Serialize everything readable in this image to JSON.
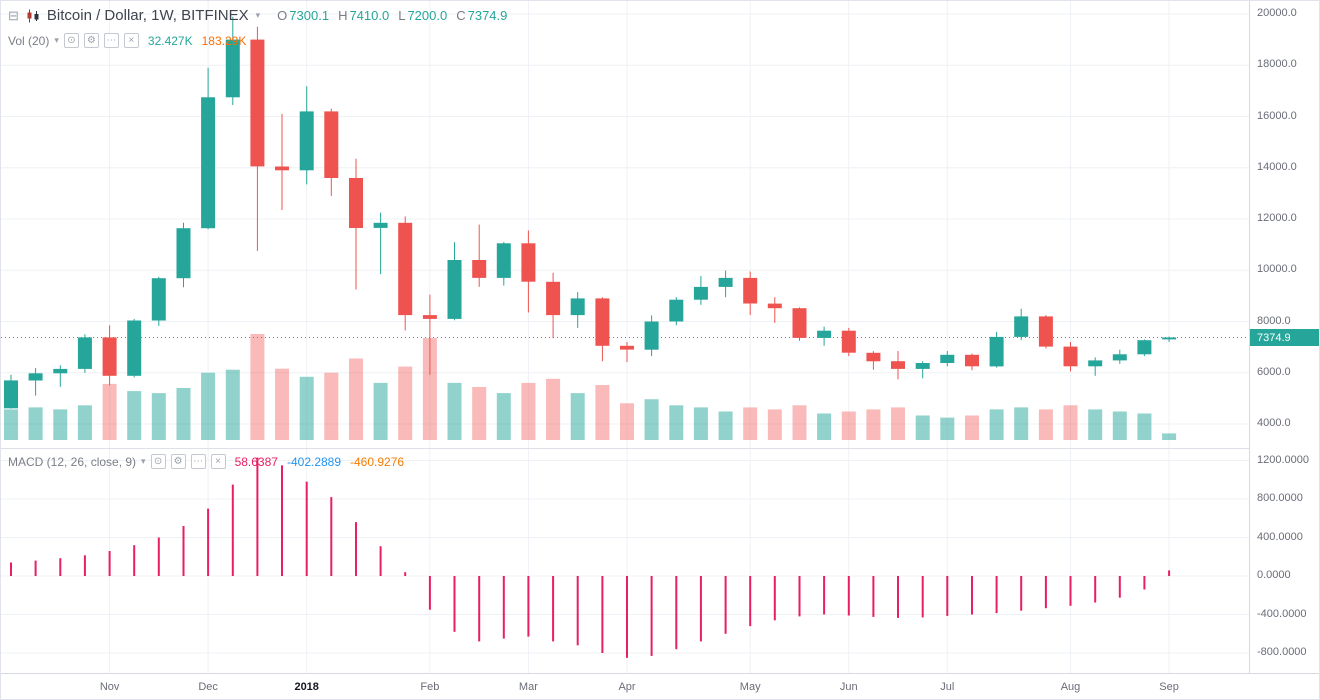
{
  "icons": {
    "collapse": "⊟",
    "caret": "▾",
    "visibility": "⊙",
    "settings": "⚙",
    "more": "⋯",
    "close": "×"
  },
  "header": {
    "title": "Bitcoin / Dollar, 1W, BITFINEX",
    "ohlc": [
      {
        "label": "O",
        "value": "7300.1"
      },
      {
        "label": "H",
        "value": "7410.0"
      },
      {
        "label": "L",
        "value": "7200.0"
      },
      {
        "label": "C",
        "value": "7374.9"
      }
    ]
  },
  "volume_indicator": {
    "label": "Vol (20)",
    "value": "32.427K",
    "ma_value": "183.29K"
  },
  "macd_indicator": {
    "label": "MACD (12, 26, close, 9)",
    "histogram_value": "58.6387",
    "macd_value": "-402.2889",
    "signal_value": "-460.9276"
  },
  "price_axis": {
    "labels": [
      "20000.0",
      "18000.0",
      "16000.0",
      "14000.0",
      "12000.0",
      "10000.0",
      "8000.0",
      "6000.0",
      "4000.0"
    ],
    "current_price": "7374.9"
  },
  "macd_axis": {
    "labels": [
      "1200.0000",
      "800.0000",
      "400.0000",
      "0.0000",
      "-400.0000",
      "-800.0000"
    ]
  },
  "time_axis": {
    "labels": [
      {
        "text": "Nov",
        "index": 4
      },
      {
        "text": "Dec",
        "index": 8
      },
      {
        "text": "2018",
        "index": 12,
        "bold": true
      },
      {
        "text": "Feb",
        "index": 17
      },
      {
        "text": "Mar",
        "index": 21
      },
      {
        "text": "Apr",
        "index": 25
      },
      {
        "text": "May",
        "index": 30
      },
      {
        "text": "Jun",
        "index": 34
      },
      {
        "text": "Jul",
        "index": 38
      },
      {
        "text": "Aug",
        "index": 43
      },
      {
        "text": "Sep",
        "index": 47
      }
    ]
  },
  "chart_data": {
    "type": "candlestick",
    "title": "Bitcoin / Dollar",
    "interval": "1W",
    "exchange": "BITFINEX",
    "ylim": [
      4000,
      20000
    ],
    "macd_ylim": [
      -800,
      1200
    ],
    "legend_position": "top-left",
    "grid": true,
    "colors": {
      "up": "#26a69a",
      "down": "#ef5350",
      "vol_up": "rgba(38,166,154,0.5)",
      "vol_down": "rgba(239,83,80,0.4)",
      "macd_histogram": "#e91e63",
      "ohlc_value": "#26a69a",
      "volume_value": "#26a69a",
      "volume_ma_value": "#ff6d00",
      "macd_value_blue": "#2196f3",
      "signal_value_orange": "#f57c00",
      "price_line": "#26a69a",
      "price_tag_bg": "#26a69a"
    },
    "candles": {
      "columns": [
        "open",
        "high",
        "low",
        "close",
        "volume_k"
      ],
      "start_week": "2017-10-09",
      "rows": [
        [
          4610,
          5920,
          4600,
          5700,
          150
        ],
        [
          5700,
          6180,
          5110,
          5980,
          160
        ],
        [
          5980,
          6290,
          5450,
          6150,
          150
        ],
        [
          6150,
          7500,
          6000,
          7380,
          170
        ],
        [
          7380,
          7850,
          5510,
          5880,
          275
        ],
        [
          5880,
          8100,
          5820,
          8040,
          240
        ],
        [
          8040,
          9750,
          7830,
          9690,
          230
        ],
        [
          9690,
          11850,
          9340,
          11640,
          255
        ],
        [
          11640,
          17900,
          11600,
          16750,
          330
        ],
        [
          16750,
          19890,
          16450,
          19000,
          345
        ],
        [
          19000,
          19500,
          10750,
          14050,
          520
        ],
        [
          14050,
          16100,
          12350,
          13900,
          350
        ],
        [
          13900,
          17180,
          13350,
          16200,
          310
        ],
        [
          16200,
          16300,
          12900,
          13600,
          330
        ],
        [
          13600,
          14350,
          9250,
          11650,
          400
        ],
        [
          11650,
          12250,
          9850,
          11850,
          280
        ],
        [
          11850,
          12100,
          7650,
          8250,
          360
        ],
        [
          8250,
          9050,
          5920,
          8100,
          500
        ],
        [
          8100,
          11100,
          8050,
          10400,
          280
        ],
        [
          10400,
          11780,
          9350,
          9700,
          260
        ],
        [
          9700,
          11100,
          9400,
          11050,
          230
        ],
        [
          11050,
          11550,
          8350,
          9550,
          280
        ],
        [
          9550,
          9900,
          7350,
          8250,
          300
        ],
        [
          8250,
          9150,
          7750,
          8900,
          230
        ],
        [
          8900,
          8950,
          6450,
          7050,
          270
        ],
        [
          7050,
          7200,
          6420,
          6900,
          180
        ],
        [
          6900,
          8240,
          6650,
          8000,
          200
        ],
        [
          8000,
          8950,
          7850,
          8850,
          170
        ],
        [
          8850,
          9770,
          8650,
          9350,
          160
        ],
        [
          9350,
          9990,
          8950,
          9700,
          140
        ],
        [
          9700,
          9950,
          8250,
          8700,
          160
        ],
        [
          8700,
          8950,
          7950,
          8520,
          150
        ],
        [
          8520,
          8550,
          7250,
          7360,
          170
        ],
        [
          7360,
          7800,
          7050,
          7640,
          130
        ],
        [
          7640,
          7750,
          6650,
          6780,
          140
        ],
        [
          6780,
          6840,
          6120,
          6450,
          150
        ],
        [
          6450,
          6850,
          5750,
          6150,
          160
        ],
        [
          6150,
          6450,
          5780,
          6380,
          120
        ],
        [
          6380,
          6850,
          6250,
          6700,
          110
        ],
        [
          6700,
          6750,
          6100,
          6250,
          120
        ],
        [
          6250,
          7600,
          6200,
          7400,
          150
        ],
        [
          7400,
          8500,
          7280,
          8200,
          160
        ],
        [
          8200,
          8250,
          6950,
          7020,
          150
        ],
        [
          7020,
          7200,
          6050,
          6250,
          170
        ],
        [
          6250,
          6600,
          5880,
          6480,
          150
        ],
        [
          6480,
          6900,
          6350,
          6720,
          140
        ],
        [
          6720,
          7300,
          6650,
          7270,
          130
        ],
        [
          7300.1,
          7410,
          7200,
          7374.9,
          32.4
        ]
      ]
    },
    "macd_histogram": [
      140,
      160,
      185,
      215,
      260,
      320,
      400,
      520,
      700,
      950,
      1230,
      1150,
      980,
      820,
      560,
      310,
      40,
      -350,
      -580,
      -680,
      -650,
      -630,
      -680,
      -720,
      -800,
      -850,
      -830,
      -760,
      -680,
      -600,
      -520,
      -460,
      -420,
      -400,
      -410,
      -425,
      -435,
      -430,
      -415,
      -400,
      -385,
      -360,
      -335,
      -310,
      -275,
      -225,
      -140,
      58.64
    ]
  }
}
